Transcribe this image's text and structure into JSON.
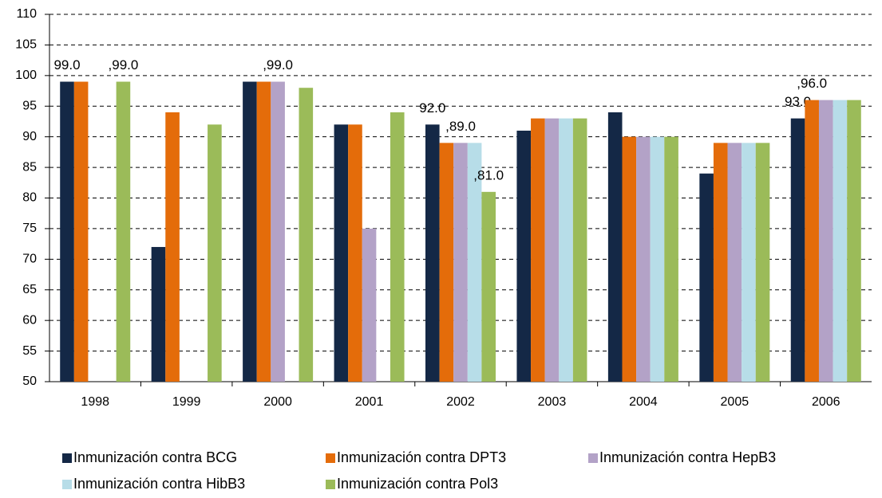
{
  "chart_data": {
    "type": "bar",
    "categories": [
      "1998",
      "1999",
      "2000",
      "2001",
      "2002",
      "2003",
      "2004",
      "2005",
      "2006"
    ],
    "series": [
      {
        "name": "Inmunización contra BCG",
        "color": "#142846",
        "values": [
          99,
          72,
          99,
          92,
          92,
          91,
          94,
          84,
          93
        ],
        "value_labels": [
          "99.0",
          null,
          null,
          null,
          "92.0",
          null,
          null,
          null,
          "93.0"
        ]
      },
      {
        "name": "Inmunización contra DPT3",
        "color": "#e46c0a",
        "values": [
          99,
          94,
          99,
          92,
          89,
          93,
          90,
          89,
          96
        ],
        "value_labels": [
          null,
          null,
          null,
          null,
          null,
          null,
          null,
          null,
          ",96.0"
        ]
      },
      {
        "name": "Inmunización contra HepB3",
        "color": "#b3a2c7",
        "values": [
          null,
          null,
          99,
          75,
          89,
          93,
          90,
          89,
          96
        ],
        "value_labels": [
          null,
          null,
          ",99.0",
          null,
          ",89.0",
          null,
          null,
          null,
          null
        ]
      },
      {
        "name": "Inmunización contra HibB3",
        "color": "#b7dde8",
        "values": [
          null,
          null,
          null,
          null,
          89,
          93,
          90,
          89,
          96
        ],
        "value_labels": [
          null,
          null,
          null,
          null,
          null,
          null,
          null,
          null,
          null
        ]
      },
      {
        "name": "Inmunización contra Pol3",
        "color": "#9bbb59",
        "values": [
          99,
          92,
          98,
          94,
          81,
          93,
          90,
          89,
          96
        ],
        "value_labels": [
          ",99.0",
          null,
          null,
          null,
          ",81.0",
          null,
          null,
          null,
          null
        ]
      }
    ],
    "ylim": [
      50,
      110
    ],
    "yticks": [
      50,
      55,
      60,
      65,
      70,
      75,
      80,
      85,
      90,
      95,
      100,
      105,
      110
    ],
    "grid": true
  }
}
